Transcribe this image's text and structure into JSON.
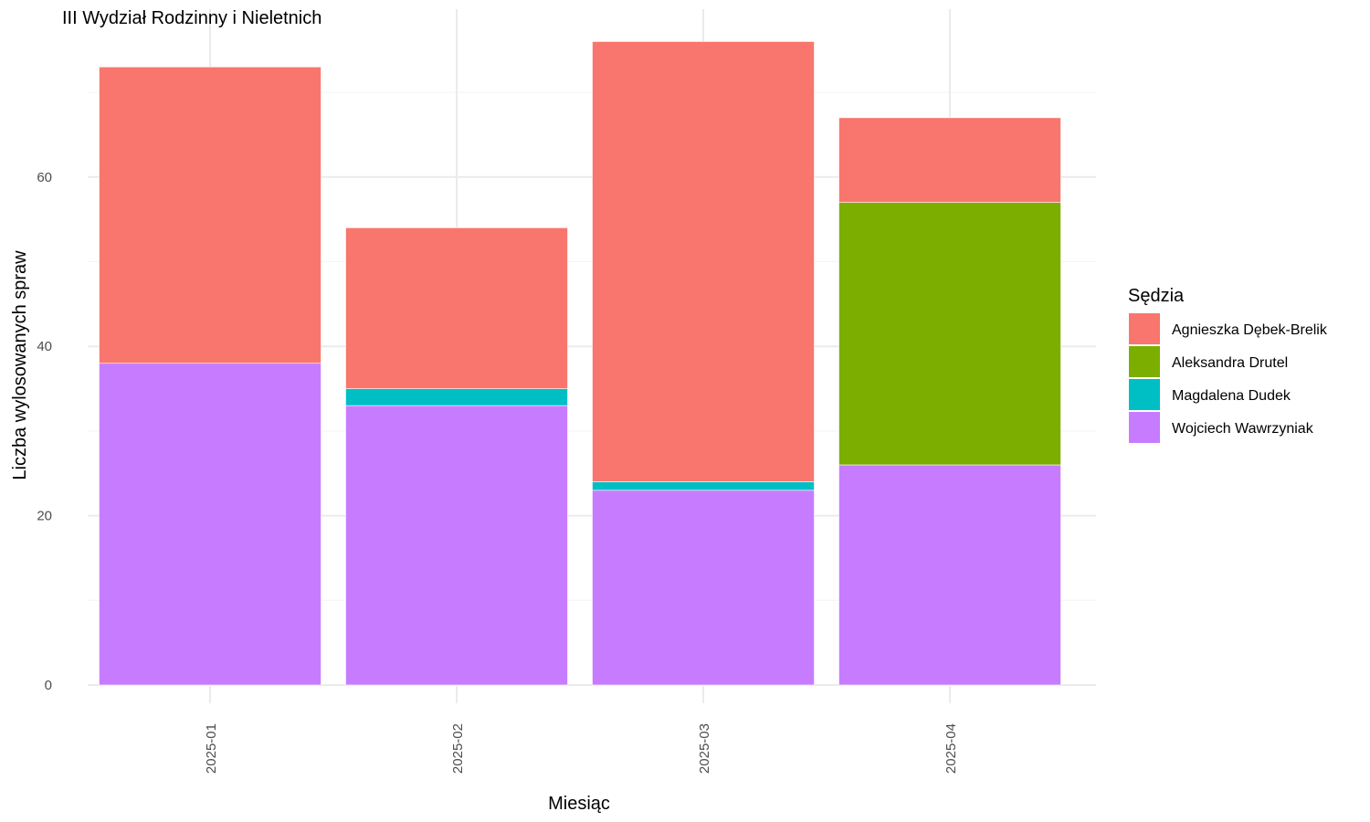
{
  "chart_data": {
    "type": "bar",
    "stacked": true,
    "title": "III Wydział Rodzinny i Nieletnich",
    "xlabel": "Miesiąc",
    "ylabel": "Liczba wylosowanych spraw",
    "categories": [
      "2025-01",
      "2025-02",
      "2025-03",
      "2025-04"
    ],
    "ylim": [
      0,
      76
    ],
    "yticks": [
      0,
      20,
      40,
      60
    ],
    "grid": true,
    "legend": {
      "title": "Sędzia",
      "position": "right"
    },
    "series": [
      {
        "name": "Wojciech Wawrzyniak",
        "color": "#C77CFF",
        "values": [
          38,
          33,
          23,
          26
        ]
      },
      {
        "name": "Magdalena Dudek",
        "color": "#00BFC4",
        "values": [
          0,
          2,
          1,
          0
        ]
      },
      {
        "name": "Aleksandra Drutel",
        "color": "#7CAE00",
        "values": [
          0,
          0,
          0,
          31
        ]
      },
      {
        "name": "Agnieszka Dębek-Brelik",
        "color": "#F8766D",
        "values": [
          35,
          19,
          52,
          10
        ]
      }
    ],
    "legend_order": [
      "Agnieszka Dębek-Brelik",
      "Aleksandra Drutel",
      "Magdalena Dudek",
      "Wojciech Wawrzyniak"
    ]
  }
}
